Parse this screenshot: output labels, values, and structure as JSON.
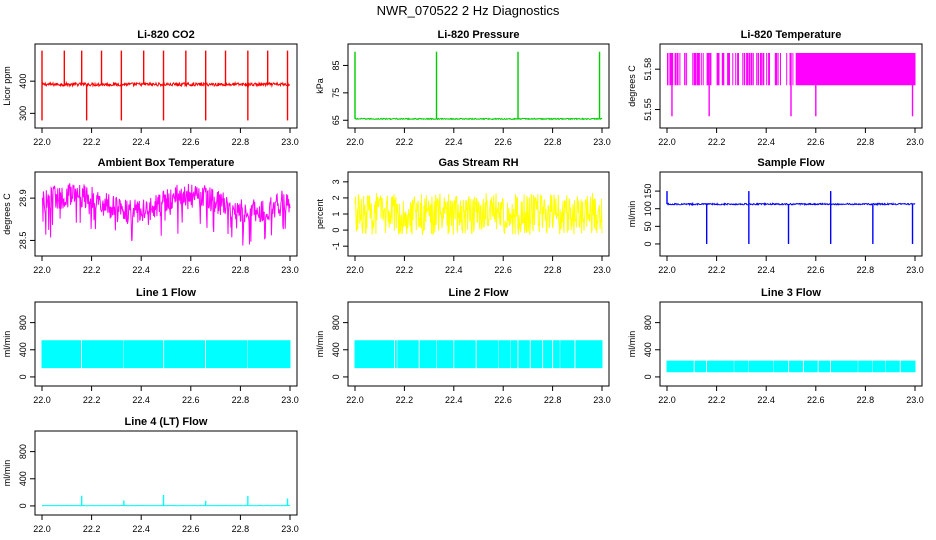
{
  "page": {
    "title": "NWR_070522  2 Hz Diagnostics"
  },
  "colors": {
    "red": "#ff0000",
    "green": "#00cc00",
    "magenta": "#ff00ff",
    "yellow": "#ffff00",
    "blue": "#0000ff",
    "cyan": "#00ffff",
    "axis": "#000000"
  },
  "chart_data": [
    {
      "type": "line",
      "title": "Li-820 CO2",
      "ylabel": "Licor ppm",
      "color": "red",
      "xlim": [
        22.0,
        23.0
      ],
      "ylim": [
        270,
        500
      ],
      "xticks": [
        "22.0",
        "22.2",
        "22.4",
        "22.6",
        "22.8",
        "23.0"
      ],
      "yticks": [
        300,
        400
      ],
      "baseline": 390,
      "noise": 5,
      "spikes_up": [
        22.0,
        22.09,
        22.16,
        22.24,
        22.32,
        22.41,
        22.49,
        22.58,
        22.66,
        22.74,
        22.83,
        22.91,
        22.99
      ],
      "spike_up_value": 495,
      "spikes_down": [
        22.0,
        22.18,
        22.32,
        22.49,
        22.66,
        22.83,
        22.99
      ],
      "spike_down_value": 278
    },
    {
      "type": "line",
      "title": "Li-820 Pressure",
      "ylabel": "kPa",
      "color": "green",
      "xlim": [
        22.0,
        23.0
      ],
      "ylim": [
        64,
        91
      ],
      "xticks": [
        "22.0",
        "22.2",
        "22.4",
        "22.6",
        "22.8",
        "23.0"
      ],
      "yticks": [
        65,
        75,
        85
      ],
      "baseline": 65.5,
      "noise": 0.2,
      "spikes_up": [
        22.0,
        22.33,
        22.66,
        22.99
      ],
      "spike_up_value": 90
    },
    {
      "type": "line",
      "title": "Li-820 Temperature",
      "ylabel": "degrees C",
      "color": "magenta",
      "xlim": [
        22.0,
        23.0
      ],
      "ylim": [
        51.54,
        51.595
      ],
      "xticks": [
        "22.0",
        "22.2",
        "22.4",
        "22.6",
        "22.8",
        "23.0"
      ],
      "yticks": [
        51.55,
        51.58
      ],
      "band": [
        51.568,
        51.592
      ],
      "band_start": 22.52,
      "spikes_down": [
        22.02,
        22.17,
        22.5,
        22.6,
        22.99
      ],
      "spike_down_value": 51.545
    },
    {
      "type": "line",
      "title": "Ambient Box Temperature",
      "ylabel": "degrees C",
      "color": "magenta",
      "xlim": [
        22.0,
        23.0
      ],
      "ylim": [
        28.4,
        29.1
      ],
      "xticks": [
        "22.0",
        "22.2",
        "22.4",
        "22.6",
        "22.8",
        "23.0"
      ],
      "yticks": [
        28.5,
        28.9
      ],
      "baseline": 28.85,
      "noise": 0.12
    },
    {
      "type": "line",
      "title": "Gas Stream RH",
      "ylabel": "percent",
      "color": "yellow",
      "xlim": [
        22.0,
        23.0
      ],
      "ylim": [
        -1.3,
        3.3
      ],
      "xticks": [
        "22.0",
        "22.2",
        "22.4",
        "22.6",
        "22.8",
        "23.0"
      ],
      "yticks": [
        -1,
        0,
        1,
        2,
        3
      ],
      "baseline": 1.0,
      "noise": 1.3
    },
    {
      "type": "line",
      "title": "Sample Flow",
      "ylabel": "ml/min",
      "color": "blue",
      "xlim": [
        22.0,
        23.0
      ],
      "ylim": [
        -20,
        190
      ],
      "xticks": [
        "22.0",
        "22.2",
        "22.4",
        "22.6",
        "22.8",
        "23.0"
      ],
      "yticks": [
        0,
        50,
        100,
        150
      ],
      "baseline": 113,
      "noise": 2,
      "spikes_down": [
        22.16,
        22.33,
        22.49,
        22.66,
        22.83,
        22.99
      ],
      "spike_down_value": 0,
      "spikes_up": [
        22.0,
        22.33,
        22.66
      ],
      "spike_up_value": 150
    },
    {
      "type": "line",
      "title": "Line 1 Flow",
      "ylabel": "ml/min",
      "color": "cyan",
      "xlim": [
        22.0,
        23.0
      ],
      "ylim": [
        -60,
        1030
      ],
      "xticks": [
        "22.0",
        "22.2",
        "22.4",
        "22.6",
        "22.8",
        "23.0"
      ],
      "yticks": [
        0,
        400,
        800
      ],
      "band": [
        130,
        540
      ],
      "gaps": [
        22.16,
        22.33,
        22.49,
        22.66,
        22.83
      ]
    },
    {
      "type": "line",
      "title": "Line 2 Flow",
      "ylabel": "ml/min",
      "color": "cyan",
      "xlim": [
        22.0,
        23.0
      ],
      "ylim": [
        -60,
        1030
      ],
      "xticks": [
        "22.0",
        "22.2",
        "22.4",
        "22.6",
        "22.8",
        "23.0"
      ],
      "yticks": [
        0,
        400,
        800
      ],
      "band": [
        130,
        540
      ],
      "gaps": [
        22.16,
        22.33,
        22.49,
        22.66,
        22.83,
        22.17,
        22.26,
        22.4,
        22.58,
        22.63,
        22.71,
        22.76,
        22.8,
        22.89
      ]
    },
    {
      "type": "line",
      "title": "Line 3 Flow",
      "ylabel": "ml/min",
      "color": "cyan",
      "xlim": [
        22.0,
        23.0
      ],
      "ylim": [
        -60,
        1030
      ],
      "xticks": [
        "22.0",
        "22.2",
        "22.4",
        "22.6",
        "22.8",
        "23.0"
      ],
      "yticks": [
        0,
        400,
        800
      ],
      "band": [
        70,
        240
      ],
      "gaps": [
        22.16,
        22.33,
        22.49,
        22.66,
        22.83,
        22.11,
        22.27,
        22.43,
        22.55,
        22.61,
        22.77,
        22.88,
        22.94
      ]
    },
    {
      "type": "line",
      "title": "Line 4 (LT) Flow",
      "ylabel": "ml/min",
      "color": "cyan",
      "xlim": [
        22.0,
        23.0
      ],
      "ylim": [
        -60,
        1030
      ],
      "xticks": [
        "22.0",
        "22.2",
        "22.4",
        "22.6",
        "22.8",
        "23.0"
      ],
      "yticks": [
        0,
        400,
        800
      ],
      "baseline": 5,
      "noise": 2,
      "spikes_up": [
        22.16,
        22.33,
        22.49,
        22.66,
        22.83,
        22.99
      ],
      "spike_up_values": [
        150,
        80,
        160,
        75,
        145,
        110
      ]
    }
  ]
}
